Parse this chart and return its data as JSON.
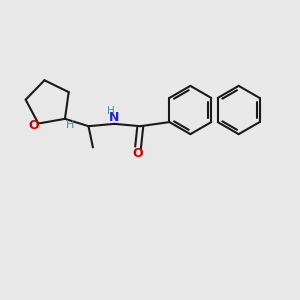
{
  "background_color": "#e8e8e8",
  "bond_color": "#1a1a1a",
  "bond_width": 1.5,
  "O_color": "#cc0000",
  "N_color": "#2222dd",
  "H_color": "#4a9090",
  "figsize": [
    3.0,
    3.0
  ],
  "dpi": 100,
  "xlim": [
    0,
    10
  ],
  "ylim": [
    0,
    10
  ]
}
